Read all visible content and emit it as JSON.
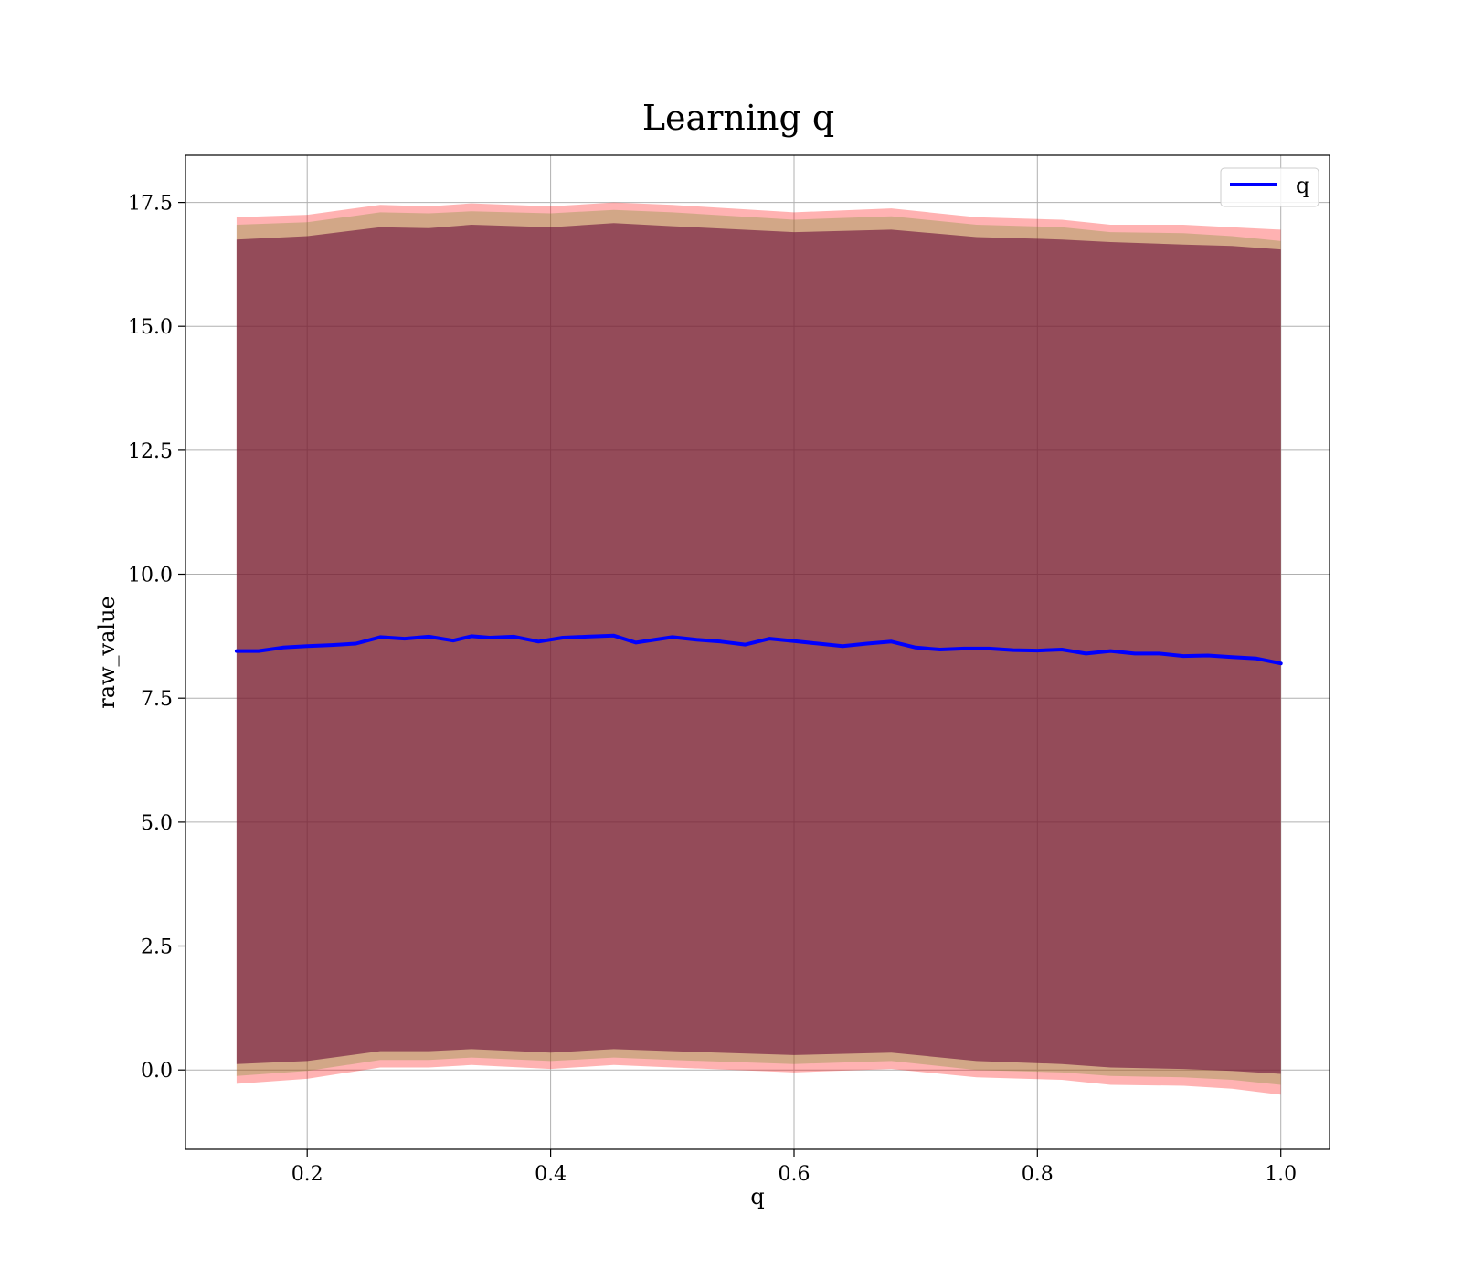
{
  "chart_data": {
    "type": "line",
    "title": "Learning q",
    "xlabel": "q",
    "ylabel": "raw_value",
    "xlim": [
      0.1,
      1.04
    ],
    "ylim": [
      -1.6,
      18.45
    ],
    "grid": true,
    "legend": {
      "placement": "top-right",
      "entries": [
        "q"
      ]
    },
    "xticks": [
      0.2,
      0.4,
      0.6,
      0.8,
      1.0
    ],
    "xtick_labels": [
      "0.2",
      "0.4",
      "0.6",
      "0.8",
      "1.0"
    ],
    "yticks": [
      0.0,
      2.5,
      5.0,
      7.5,
      10.0,
      12.5,
      15.0,
      17.5
    ],
    "ytick_labels": [
      "0.0",
      "2.5",
      "5.0",
      "7.5",
      "10.0",
      "12.5",
      "15.0",
      "17.5"
    ],
    "colors": {
      "line": "#0000ff",
      "band_outer": "#ff0000",
      "band_middle": "#6b8e23",
      "band_inner": "#6a0d3a"
    },
    "series": [
      {
        "name": "q",
        "x": [
          0.142,
          0.16,
          0.18,
          0.2,
          0.22,
          0.24,
          0.26,
          0.28,
          0.3,
          0.32,
          0.335,
          0.35,
          0.37,
          0.39,
          0.41,
          0.43,
          0.452,
          0.47,
          0.5,
          0.52,
          0.54,
          0.56,
          0.58,
          0.6,
          0.62,
          0.64,
          0.66,
          0.68,
          0.7,
          0.72,
          0.74,
          0.76,
          0.78,
          0.8,
          0.82,
          0.84,
          0.86,
          0.88,
          0.9,
          0.92,
          0.94,
          0.96,
          0.98,
          1.0
        ],
        "y": [
          8.45,
          8.45,
          8.52,
          8.55,
          8.57,
          8.6,
          8.73,
          8.7,
          8.74,
          8.66,
          8.75,
          8.72,
          8.74,
          8.64,
          8.72,
          8.74,
          8.76,
          8.62,
          8.73,
          8.68,
          8.64,
          8.58,
          8.7,
          8.65,
          8.6,
          8.55,
          8.6,
          8.64,
          8.52,
          8.48,
          8.5,
          8.5,
          8.47,
          8.46,
          8.48,
          8.4,
          8.45,
          8.4,
          8.4,
          8.35,
          8.36,
          8.33,
          8.3,
          8.2
        ]
      }
    ],
    "bands": [
      {
        "color": "#ff0000",
        "opacity": 0.3,
        "x": [
          0.142,
          0.2,
          0.26,
          0.3,
          0.335,
          0.4,
          0.452,
          0.5,
          0.6,
          0.68,
          0.75,
          0.82,
          0.86,
          0.92,
          0.96,
          1.0
        ],
        "upper": [
          17.2,
          17.25,
          17.45,
          17.42,
          17.48,
          17.42,
          17.5,
          17.45,
          17.3,
          17.38,
          17.2,
          17.15,
          17.05,
          17.05,
          17.0,
          16.95
        ],
        "lower": [
          -0.28,
          -0.18,
          0.05,
          0.05,
          0.1,
          0.02,
          0.1,
          0.05,
          -0.05,
          0.02,
          -0.15,
          -0.2,
          -0.3,
          -0.32,
          -0.38,
          -0.5
        ]
      },
      {
        "color": "#6b8e23",
        "opacity": 0.3,
        "x": [
          0.142,
          0.2,
          0.26,
          0.3,
          0.335,
          0.4,
          0.452,
          0.5,
          0.6,
          0.68,
          0.75,
          0.82,
          0.86,
          0.92,
          0.96,
          1.0
        ],
        "upper": [
          17.05,
          17.1,
          17.3,
          17.28,
          17.32,
          17.28,
          17.35,
          17.3,
          17.15,
          17.22,
          17.05,
          17.0,
          16.9,
          16.88,
          16.82,
          16.72
        ],
        "lower": [
          -0.12,
          -0.02,
          0.2,
          0.2,
          0.25,
          0.18,
          0.25,
          0.2,
          0.12,
          0.18,
          0.0,
          -0.05,
          -0.12,
          -0.15,
          -0.2,
          -0.3
        ]
      },
      {
        "color": "#6a0d3a",
        "opacity": 0.6,
        "x": [
          0.142,
          0.2,
          0.26,
          0.3,
          0.335,
          0.4,
          0.452,
          0.5,
          0.6,
          0.68,
          0.75,
          0.82,
          0.86,
          0.92,
          0.96,
          1.0
        ],
        "upper": [
          16.75,
          16.82,
          17.0,
          16.98,
          17.05,
          17.0,
          17.08,
          17.02,
          16.9,
          16.95,
          16.8,
          16.75,
          16.7,
          16.65,
          16.62,
          16.55
        ],
        "lower": [
          0.12,
          0.18,
          0.38,
          0.38,
          0.42,
          0.35,
          0.42,
          0.38,
          0.3,
          0.35,
          0.18,
          0.12,
          0.05,
          0.02,
          -0.02,
          -0.08
        ]
      }
    ]
  }
}
